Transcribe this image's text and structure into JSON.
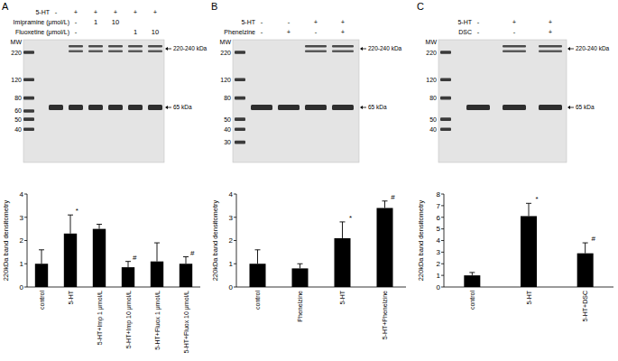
{
  "chart_data": [
    {
      "type": "bar",
      "categories": [
        "control",
        "5-HT",
        "5-HT+Imp 1 μmol/L",
        "5-HT+Imp 10 μmol/L",
        "5-HT+Fluox 1 μmol/L",
        "5-HT+Fluox 10 μmol/L"
      ],
      "values": [
        1.0,
        2.3,
        2.5,
        0.85,
        1.1,
        1.0
      ],
      "errors": [
        0.6,
        0.8,
        0.2,
        0.25,
        0.8,
        0.3
      ],
      "significance": [
        null,
        "*",
        null,
        "#",
        null,
        "#"
      ],
      "y_label": "220kDa band densitometry",
      "color": "#000000",
      "ylim": [
        0,
        4
      ],
      "yticks": [
        0,
        1,
        2,
        3,
        4
      ]
    },
    {
      "type": "bar",
      "categories": [
        "control",
        "Phenelzine",
        "5-HT",
        "5-HT+Phenelzine"
      ],
      "values": [
        1.0,
        0.8,
        2.1,
        3.4
      ],
      "errors": [
        0.6,
        0.2,
        0.7,
        0.3
      ],
      "significance": [
        null,
        null,
        "*",
        "#"
      ],
      "y_label": "220kDa band densitometry",
      "color": "#000000",
      "ylim": [
        0,
        4
      ],
      "yticks": [
        0,
        1,
        2,
        3,
        4
      ]
    },
    {
      "type": "bar",
      "categories": [
        "control",
        "5-HT",
        "5-HT+DSC"
      ],
      "values": [
        1.0,
        6.1,
        2.9
      ],
      "errors": [
        0.25,
        1.1,
        0.9
      ],
      "significance": [
        null,
        "*",
        "#"
      ],
      "y_label": "220kDa band densitometry",
      "color": "#000000",
      "ylim": [
        0,
        8
      ],
      "yticks": [
        0,
        1,
        2,
        3,
        4,
        5,
        6,
        7,
        8
      ]
    }
  ],
  "blots": [
    {
      "panel": "A",
      "rows": [
        {
          "label": "5-HT",
          "signs": [
            "-",
            "+",
            "+",
            "+",
            "+",
            "+"
          ]
        },
        {
          "label": "Imipramine (μmol/L)",
          "signs": [
            null,
            "-",
            "1",
            "10",
            null,
            null
          ]
        },
        {
          "label": "Fluoxetine (μmol/L)",
          "signs": [
            null,
            "-",
            null,
            null,
            "1",
            "10"
          ]
        }
      ],
      "mw_label": "MW",
      "mw": [
        220,
        120,
        80,
        60,
        50,
        40
      ],
      "arrows": [
        "220-240 kDa",
        "65 kDa"
      ]
    },
    {
      "panel": "B",
      "rows": [
        {
          "label": "5-HT",
          "signs": [
            "-",
            "-",
            "+",
            "+"
          ]
        },
        {
          "label": "Phenelzine",
          "signs": [
            "-",
            "+",
            "-",
            "+"
          ]
        }
      ],
      "mw_label": "MW",
      "mw": [
        220,
        120,
        80,
        50,
        40,
        30
      ],
      "arrows": [
        "220-240 kDa",
        "65 kDa"
      ]
    },
    {
      "panel": "C",
      "rows": [
        {
          "label": "5-HT",
          "signs": [
            "-",
            "+",
            "+"
          ]
        },
        {
          "label": "DSC",
          "signs": [
            "-",
            "-",
            "+"
          ]
        }
      ],
      "mw_label": "MW",
      "mw": [
        220,
        120,
        80,
        50,
        40
      ],
      "arrows": [
        "220-240 kDa",
        "65 kDa"
      ]
    }
  ]
}
